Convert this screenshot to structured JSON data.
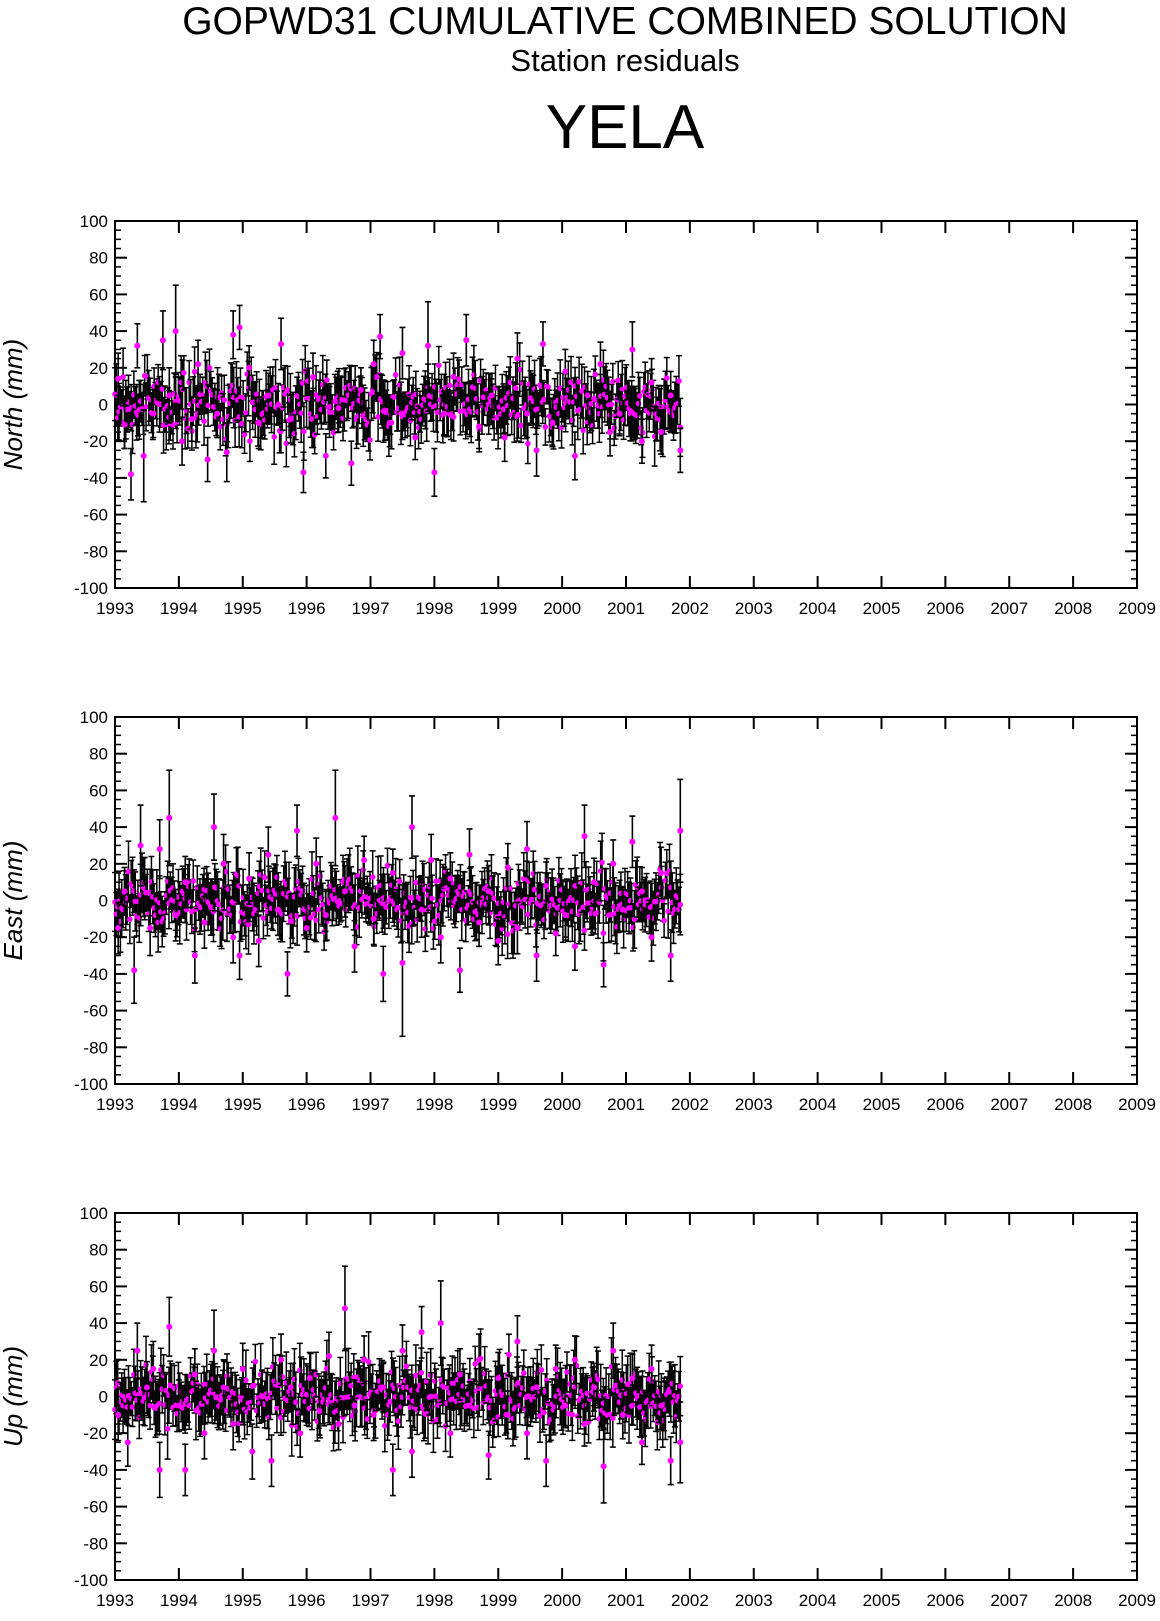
{
  "title": "GOPWD31 CUMULATIVE COMBINED SOLUTION",
  "subtitle": "Station residuals",
  "station": "YELA",
  "colors": {
    "point": "#ff00ff",
    "errorbar": "#000000",
    "frame": "#000000"
  },
  "chart_data": [
    {
      "type": "scatter",
      "ylabel": "North (mm)",
      "xlim": [
        1993,
        2009
      ],
      "ylim": [
        -100,
        100
      ],
      "xticks": [
        "1993",
        "1994",
        "1995",
        "1996",
        "1997",
        "1998",
        "1999",
        "2000",
        "2001",
        "2002",
        "2003",
        "2004",
        "2005",
        "2006",
        "2007",
        "2008",
        "2009"
      ],
      "yticks": [
        "100",
        "80",
        "60",
        "40",
        "20",
        "0",
        "-20",
        "-40",
        "-60",
        "-80",
        "-100"
      ],
      "data_range": [
        1993.0,
        2001.85
      ],
      "series": [
        {
          "points": [
            [
              1993.05,
              14,
              14
            ],
            [
              1993.15,
              -11,
              13
            ],
            [
              1993.25,
              -38,
              14
            ],
            [
              1993.35,
              32,
              12
            ],
            [
              1993.45,
              -28,
              25
            ],
            [
              1993.6,
              -5,
              13
            ],
            [
              1993.75,
              35,
              16
            ],
            [
              1993.85,
              5,
              15
            ],
            [
              1993.95,
              40,
              25
            ],
            [
              1994.05,
              -20,
              13
            ],
            [
              1994.2,
              -8,
              12
            ],
            [
              1994.3,
              22,
              13
            ],
            [
              1994.45,
              -30,
              12
            ],
            [
              1994.6,
              -5,
              13
            ],
            [
              1994.75,
              -26,
              16
            ],
            [
              1994.85,
              38,
              13
            ],
            [
              1994.95,
              42,
              12
            ],
            [
              1995.1,
              20,
              12
            ],
            [
              1995.25,
              -10,
              14
            ],
            [
              1995.4,
              5,
              12
            ],
            [
              1995.6,
              33,
              14
            ],
            [
              1995.75,
              -8,
              13
            ],
            [
              1995.95,
              -37,
              11
            ],
            [
              1996.1,
              15,
              13
            ],
            [
              1996.3,
              -28,
              12
            ],
            [
              1996.5,
              -2,
              13
            ],
            [
              1996.7,
              -32,
              12
            ],
            [
              1996.85,
              8,
              12
            ],
            [
              1997.05,
              22,
              13
            ],
            [
              1997.15,
              37,
              12
            ],
            [
              1997.3,
              -10,
              13
            ],
            [
              1997.5,
              28,
              14
            ],
            [
              1997.7,
              -18,
              12
            ],
            [
              1997.9,
              32,
              24
            ],
            [
              1998.0,
              -37,
              13
            ],
            [
              1998.15,
              -5,
              12
            ],
            [
              1998.3,
              15,
              13
            ],
            [
              1998.5,
              35,
              14
            ],
            [
              1998.7,
              -12,
              12
            ],
            [
              1998.9,
              5,
              12
            ],
            [
              1999.1,
              -18,
              13
            ],
            [
              1999.3,
              25,
              14
            ],
            [
              1999.45,
              -5,
              13
            ],
            [
              1999.6,
              -25,
              14
            ],
            [
              1999.7,
              33,
              12
            ],
            [
              1999.85,
              -10,
              13
            ],
            [
              2000.05,
              18,
              12
            ],
            [
              2000.2,
              -28,
              13
            ],
            [
              2000.4,
              5,
              13
            ],
            [
              2000.6,
              22,
              12
            ],
            [
              2000.75,
              -15,
              13
            ],
            [
              2000.9,
              -5,
              12
            ],
            [
              2001.1,
              30,
              15
            ],
            [
              2001.25,
              -20,
              12
            ],
            [
              2001.4,
              12,
              13
            ],
            [
              2001.55,
              -15,
              12
            ],
            [
              2001.7,
              5,
              13
            ],
            [
              2001.85,
              -25,
              12
            ]
          ]
        }
      ]
    },
    {
      "type": "scatter",
      "ylabel": "East (mm)",
      "xlim": [
        1993,
        2009
      ],
      "ylim": [
        -100,
        100
      ],
      "xticks": [
        "1993",
        "1994",
        "1995",
        "1996",
        "1997",
        "1998",
        "1999",
        "2000",
        "2001",
        "2002",
        "2003",
        "2004",
        "2005",
        "2006",
        "2007",
        "2008",
        "2009"
      ],
      "yticks": [
        "100",
        "80",
        "60",
        "40",
        "20",
        "0",
        "-20",
        "-40",
        "-60",
        "-80",
        "-100"
      ],
      "data_range": [
        1993.0,
        2001.85
      ],
      "series": [
        {
          "points": [
            [
              1993.05,
              -15,
              14
            ],
            [
              1993.15,
              5,
              13
            ],
            [
              1993.3,
              -38,
              18
            ],
            [
              1993.4,
              30,
              22
            ],
            [
              1993.55,
              -15,
              15
            ],
            [
              1993.7,
              28,
              16
            ],
            [
              1993.85,
              45,
              26
            ],
            [
              1993.95,
              -8,
              14
            ],
            [
              1994.1,
              10,
              14
            ],
            [
              1994.25,
              -30,
              15
            ],
            [
              1994.4,
              -12,
              14
            ],
            [
              1994.55,
              40,
              18
            ],
            [
              1994.7,
              20,
              16
            ],
            [
              1994.85,
              -20,
              14
            ],
            [
              1994.95,
              -30,
              13
            ],
            [
              1995.1,
              12,
              14
            ],
            [
              1995.25,
              -22,
              14
            ],
            [
              1995.4,
              25,
              15
            ],
            [
              1995.55,
              -5,
              14
            ],
            [
              1995.7,
              -40,
              12
            ],
            [
              1995.85,
              38,
              14
            ],
            [
              1996.0,
              -15,
              13
            ],
            [
              1996.15,
              20,
              14
            ],
            [
              1996.3,
              -8,
              14
            ],
            [
              1996.45,
              45,
              26
            ],
            [
              1996.6,
              5,
              14
            ],
            [
              1996.75,
              -25,
              14
            ],
            [
              1996.9,
              22,
              13
            ],
            [
              1997.05,
              -10,
              14
            ],
            [
              1997.2,
              -40,
              15
            ],
            [
              1997.35,
              15,
              13
            ],
            [
              1997.5,
              -34,
              40
            ],
            [
              1997.65,
              40,
              17
            ],
            [
              1997.8,
              -5,
              15
            ],
            [
              1997.95,
              22,
              14
            ],
            [
              1998.1,
              -20,
              14
            ],
            [
              1998.25,
              12,
              14
            ],
            [
              1998.4,
              -38,
              12
            ],
            [
              1998.55,
              25,
              14
            ],
            [
              1998.7,
              -12,
              13
            ],
            [
              1998.85,
              5,
              14
            ],
            [
              1999.0,
              -22,
              13
            ],
            [
              1999.15,
              18,
              13
            ],
            [
              1999.3,
              -15,
              14
            ],
            [
              1999.45,
              28,
              15
            ],
            [
              1999.6,
              -30,
              14
            ],
            [
              1999.75,
              8,
              13
            ],
            [
              1999.9,
              -18,
              12
            ],
            [
              2000.05,
              -8,
              12
            ],
            [
              2000.2,
              -25,
              13
            ],
            [
              2000.35,
              35,
              17
            ],
            [
              2000.5,
              10,
              13
            ],
            [
              2000.65,
              -35,
              12
            ],
            [
              2000.8,
              20,
              13
            ],
            [
              2000.95,
              -5,
              12
            ],
            [
              2001.1,
              32,
              14
            ],
            [
              2001.25,
              5,
              13
            ],
            [
              2001.4,
              -20,
              13
            ],
            [
              2001.55,
              15,
              14
            ],
            [
              2001.7,
              -30,
              14
            ],
            [
              2001.85,
              38,
              28
            ]
          ]
        }
      ]
    },
    {
      "type": "scatter",
      "ylabel": "Up (mm)",
      "xlim": [
        1993,
        2009
      ],
      "ylim": [
        -100,
        100
      ],
      "xticks": [
        "1993",
        "1994",
        "1995",
        "1996",
        "1997",
        "1998",
        "1999",
        "2000",
        "2001",
        "2002",
        "2003",
        "2004",
        "2005",
        "2006",
        "2007",
        "2008",
        "2009"
      ],
      "yticks": [
        "100",
        "80",
        "60",
        "40",
        "20",
        "0",
        "-20",
        "-40",
        "-60",
        "-80",
        "-100"
      ],
      "data_range": [
        1993.0,
        2001.85
      ],
      "series": [
        {
          "points": [
            [
              1993.05,
              -10,
              14
            ],
            [
              1993.2,
              -25,
              13
            ],
            [
              1993.35,
              25,
              15
            ],
            [
              1993.5,
              5,
              14
            ],
            [
              1993.6,
              15,
              15
            ],
            [
              1993.7,
              -40,
              15
            ],
            [
              1993.85,
              38,
              16
            ],
            [
              1994.0,
              -5,
              14
            ],
            [
              1994.1,
              -40,
              14
            ],
            [
              1994.25,
              12,
              14
            ],
            [
              1994.4,
              -20,
              14
            ],
            [
              1994.55,
              25,
              22
            ],
            [
              1994.7,
              5,
              15
            ],
            [
              1994.85,
              -15,
              14
            ],
            [
              1995.0,
              15,
              14
            ],
            [
              1995.15,
              -30,
              15
            ],
            [
              1995.3,
              0,
              14
            ],
            [
              1995.45,
              -35,
              14
            ],
            [
              1995.6,
              20,
              14
            ],
            [
              1995.75,
              5,
              13
            ],
            [
              1995.9,
              -20,
              13
            ],
            [
              1996.05,
              10,
              14
            ],
            [
              1996.2,
              -8,
              13
            ],
            [
              1996.35,
              22,
              13
            ],
            [
              1996.5,
              -15,
              14
            ],
            [
              1996.6,
              48,
              23
            ],
            [
              1996.75,
              -5,
              14
            ],
            [
              1996.9,
              20,
              13
            ],
            [
              1997.05,
              -10,
              14
            ],
            [
              1997.2,
              5,
              13
            ],
            [
              1997.35,
              -40,
              14
            ],
            [
              1997.5,
              25,
              14
            ],
            [
              1997.65,
              -30,
              14
            ],
            [
              1997.8,
              35,
              14
            ],
            [
              1997.95,
              0,
              13
            ],
            [
              1998.1,
              40,
              23
            ],
            [
              1998.25,
              -20,
              13
            ],
            [
              1998.4,
              12,
              14
            ],
            [
              1998.55,
              -5,
              13
            ],
            [
              1998.7,
              20,
              14
            ],
            [
              1998.85,
              -32,
              13
            ],
            [
              1999.0,
              10,
              14
            ],
            [
              1999.15,
              -10,
              13
            ],
            [
              1999.3,
              30,
              14
            ],
            [
              1999.45,
              -20,
              14
            ],
            [
              1999.6,
              5,
              13
            ],
            [
              1999.75,
              -35,
              14
            ],
            [
              1999.9,
              15,
              13
            ],
            [
              2000.05,
              -5,
              12
            ],
            [
              2000.2,
              20,
              13
            ],
            [
              2000.35,
              -15,
              12
            ],
            [
              2000.5,
              5,
              13
            ],
            [
              2000.65,
              -38,
              20
            ],
            [
              2000.8,
              25,
              15
            ],
            [
              2000.95,
              -10,
              13
            ],
            [
              2001.1,
              10,
              13
            ],
            [
              2001.25,
              -25,
              12
            ],
            [
              2001.4,
              15,
              13
            ],
            [
              2001.55,
              -5,
              13
            ],
            [
              2001.7,
              -35,
              13
            ],
            [
              2001.85,
              -25,
              22
            ]
          ]
        }
      ]
    }
  ]
}
